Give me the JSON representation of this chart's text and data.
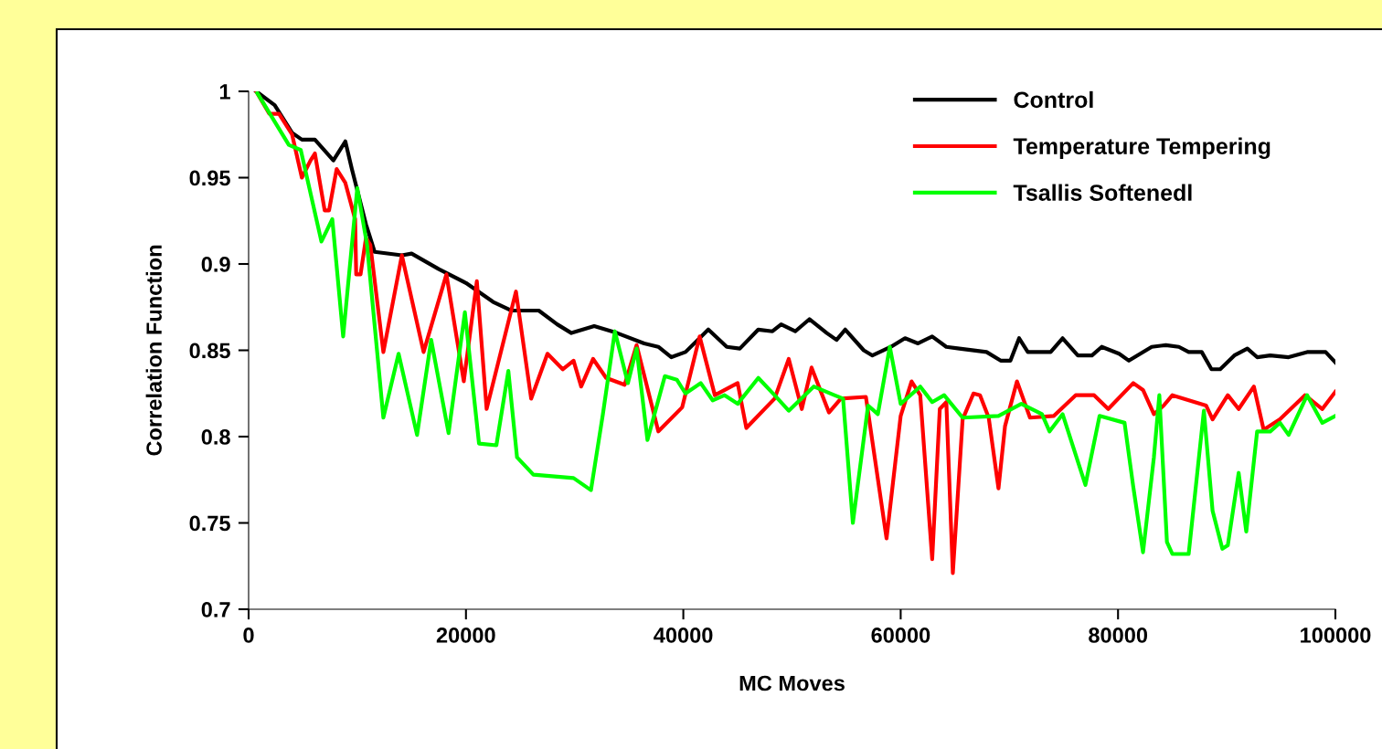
{
  "chart_data": {
    "type": "line",
    "xlabel": "MC Moves",
    "ylabel": "Correlation Function",
    "xlim": [
      0,
      100000
    ],
    "xticks": [
      0,
      20000,
      40000,
      60000,
      80000,
      100000
    ],
    "ylim": [
      0.7,
      1
    ],
    "yticks": [
      {
        "value": 0.7,
        "label": "0.7"
      },
      {
        "value": 0.75,
        "label": "0.75"
      },
      {
        "value": 0.8,
        "label": "0.8"
      },
      {
        "value": 0.85,
        "label": "0.85"
      },
      {
        "value": 0.9,
        "label": "0.9"
      },
      {
        "value": 0.95,
        "label": "0.95"
      },
      {
        "value": 1,
        "label": "1"
      }
    ],
    "grid": false,
    "legend": "top right",
    "marker": "none",
    "line_style": "solid",
    "series": [
      {
        "name": "Control",
        "color": "#000000",
        "x": [
          700,
          2400,
          4000,
          4900,
          6100,
          7800,
          8900,
          9500,
          10800,
          11600,
          14100,
          15000,
          17500,
          20000,
          22500,
          24200,
          26700,
          28400,
          29700,
          31800,
          33900,
          36400,
          37700,
          38900,
          40200,
          42300,
          44000,
          45200,
          46900,
          48200,
          49000,
          50300,
          51600,
          53200,
          54100,
          54900,
          56600,
          57400,
          59100,
          60400,
          61600,
          62900,
          64200,
          65400,
          67900,
          69200,
          70100,
          70900,
          71700,
          73800,
          74900,
          76300,
          77600,
          78500,
          80100,
          81000,
          83100,
          84400,
          85600,
          86500,
          87700,
          88600,
          89400,
          90700,
          91900,
          92800,
          94000,
          95700,
          97400,
          99100,
          100000
        ],
        "values": [
          1.0,
          0.992,
          0.976,
          0.972,
          0.972,
          0.96,
          0.971,
          0.955,
          0.923,
          0.907,
          0.905,
          0.906,
          0.897,
          0.889,
          0.878,
          0.873,
          0.873,
          0.865,
          0.86,
          0.864,
          0.86,
          0.854,
          0.852,
          0.846,
          0.849,
          0.862,
          0.852,
          0.851,
          0.862,
          0.861,
          0.865,
          0.861,
          0.868,
          0.86,
          0.856,
          0.862,
          0.85,
          0.847,
          0.852,
          0.857,
          0.854,
          0.858,
          0.852,
          0.851,
          0.849,
          0.844,
          0.844,
          0.857,
          0.849,
          0.849,
          0.857,
          0.847,
          0.847,
          0.852,
          0.848,
          0.844,
          0.852,
          0.853,
          0.852,
          0.849,
          0.849,
          0.839,
          0.839,
          0.847,
          0.851,
          0.846,
          0.847,
          0.846,
          0.849,
          0.849,
          0.843
        ]
      },
      {
        "name": "Temperature Tempering",
        "color": "#ff0000",
        "x": [
          700,
          1900,
          2800,
          4000,
          4900,
          5700,
          6100,
          7000,
          7400,
          8100,
          8900,
          9800,
          9900,
          10300,
          10800,
          11200,
          12400,
          14100,
          16100,
          18200,
          19800,
          21000,
          21900,
          24600,
          26000,
          27500,
          28900,
          29900,
          30600,
          31700,
          32900,
          34600,
          35700,
          37700,
          39900,
          41500,
          42900,
          45000,
          45800,
          48400,
          49700,
          50900,
          51800,
          53400,
          54500,
          56800,
          58700,
          60000,
          61000,
          61800,
          62900,
          63600,
          64200,
          64800,
          65700,
          66700,
          67300,
          68100,
          69000,
          69600,
          70700,
          71900,
          74100,
          76100,
          77800,
          79100,
          81400,
          82300,
          83300,
          84200,
          85000,
          88100,
          88700,
          90100,
          91100,
          92500,
          93400,
          94900,
          97200,
          98800,
          100000
        ],
        "values": [
          1.0,
          0.987,
          0.987,
          0.975,
          0.95,
          0.96,
          0.964,
          0.931,
          0.931,
          0.955,
          0.947,
          0.926,
          0.894,
          0.894,
          0.915,
          0.911,
          0.849,
          0.905,
          0.849,
          0.894,
          0.832,
          0.89,
          0.816,
          0.884,
          0.822,
          0.848,
          0.839,
          0.844,
          0.829,
          0.845,
          0.834,
          0.83,
          0.853,
          0.803,
          0.817,
          0.858,
          0.824,
          0.831,
          0.805,
          0.822,
          0.845,
          0.816,
          0.84,
          0.814,
          0.822,
          0.823,
          0.741,
          0.812,
          0.832,
          0.824,
          0.729,
          0.816,
          0.82,
          0.721,
          0.81,
          0.825,
          0.824,
          0.811,
          0.77,
          0.806,
          0.832,
          0.811,
          0.812,
          0.824,
          0.824,
          0.816,
          0.831,
          0.827,
          0.813,
          0.818,
          0.824,
          0.818,
          0.81,
          0.824,
          0.816,
          0.829,
          0.804,
          0.81,
          0.824,
          0.816,
          0.826
        ]
      },
      {
        "name": "Tsallis Softenedl",
        "color": "#00ff00",
        "x": [
          800,
          3700,
          4800,
          6700,
          7700,
          8700,
          10000,
          10900,
          12400,
          13800,
          15500,
          16800,
          18400,
          19900,
          21200,
          22800,
          23900,
          24700,
          26200,
          29900,
          31500,
          32600,
          33700,
          34900,
          35700,
          36700,
          38300,
          39400,
          40200,
          41600,
          42700,
          43800,
          45000,
          46900,
          48400,
          49700,
          52000,
          53900,
          54700,
          55600,
          57000,
          57900,
          59000,
          60000,
          61800,
          62900,
          64000,
          65700,
          69000,
          71100,
          73000,
          73700,
          74900,
          77000,
          78300,
          80600,
          81400,
          82300,
          83300,
          83800,
          84500,
          85000,
          86500,
          87900,
          88700,
          89600,
          90100,
          91100,
          91800,
          92800,
          94000,
          94900,
          95700,
          97400,
          98800,
          100000
        ],
        "values": [
          0.999,
          0.969,
          0.966,
          0.913,
          0.926,
          0.858,
          0.944,
          0.911,
          0.811,
          0.848,
          0.801,
          0.856,
          0.802,
          0.872,
          0.796,
          0.795,
          0.838,
          0.788,
          0.778,
          0.776,
          0.769,
          0.813,
          0.861,
          0.831,
          0.851,
          0.798,
          0.835,
          0.833,
          0.825,
          0.831,
          0.821,
          0.824,
          0.819,
          0.834,
          0.824,
          0.815,
          0.829,
          0.824,
          0.822,
          0.75,
          0.818,
          0.813,
          0.852,
          0.819,
          0.829,
          0.82,
          0.824,
          0.811,
          0.812,
          0.819,
          0.813,
          0.803,
          0.813,
          0.772,
          0.812,
          0.808,
          0.771,
          0.733,
          0.788,
          0.824,
          0.739,
          0.732,
          0.732,
          0.815,
          0.757,
          0.735,
          0.737,
          0.779,
          0.745,
          0.803,
          0.803,
          0.808,
          0.801,
          0.824,
          0.808,
          0.812
        ]
      }
    ]
  }
}
